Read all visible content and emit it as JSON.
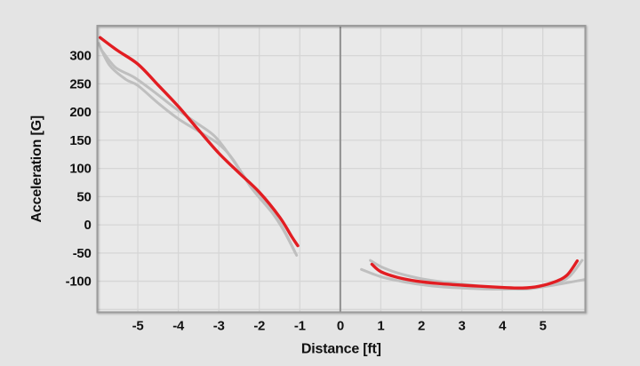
{
  "figure": {
    "bg_color": "#e4e4e4",
    "plot_bg_color": "#e9e9e9",
    "grid_color": "#d6d6d6",
    "border_color": "#9b9b9b",
    "zero_line_color": "#8f8f8f",
    "text_color": "#111111",
    "red_color": "#e21d22",
    "gray_color": "#bfbfbf"
  },
  "chart_data": {
    "type": "line",
    "title": "",
    "xlabel": "Distance [ft]",
    "ylabel": "Acceleration [G]",
    "xlim": [
      -6.0,
      6.05
    ],
    "ylim": [
      -155,
      353
    ],
    "x_ticks": [
      -5,
      -4,
      -3,
      -2,
      -1,
      0,
      1,
      2,
      3,
      4,
      5
    ],
    "y_ticks": [
      300,
      250,
      200,
      150,
      100,
      50,
      0,
      -50,
      -100
    ],
    "x_gridlines": [
      -5,
      -4,
      -3,
      -2,
      -1,
      1,
      2,
      3,
      4,
      5
    ],
    "y_gridlines": [
      -150,
      -100,
      -50,
      0,
      50,
      100,
      150,
      200,
      250,
      300,
      350
    ],
    "zero_x_line": 0,
    "grid": "on",
    "legend": "none",
    "series": [
      {
        "name": "gray-run-1",
        "color": "#bfbfbf",
        "width": 3,
        "segments": [
          [
            [
              -5.88,
              308
            ],
            [
              -5.55,
              279
            ],
            [
              -5.1,
              262
            ],
            [
              -4.6,
              236
            ],
            [
              -4.1,
              208
            ],
            [
              -3.6,
              183
            ],
            [
              -3.1,
              157
            ],
            [
              -2.7,
              120
            ],
            [
              -2.2,
              68
            ],
            [
              -1.7,
              25
            ],
            [
              -1.4,
              -8
            ],
            [
              -1.12,
              -48
            ]
          ],
          [
            [
              0.74,
              -63
            ],
            [
              1,
              -74
            ],
            [
              1.4,
              -85
            ],
            [
              1.9,
              -94
            ],
            [
              2.4,
              -100
            ],
            [
              3,
              -105
            ],
            [
              3.5,
              -109
            ],
            [
              4,
              -112.5
            ],
            [
              4.5,
              -114
            ],
            [
              4.9,
              -111
            ],
            [
              5.3,
              -104
            ],
            [
              5.65,
              -92
            ],
            [
              5.97,
              -63
            ]
          ]
        ]
      },
      {
        "name": "gray-run-2",
        "color": "#bfbfbf",
        "width": 3,
        "segments": [
          [
            [
              -5.97,
              322
            ],
            [
              -5.7,
              283
            ],
            [
              -5.3,
              258
            ],
            [
              -5,
              247
            ],
            [
              -4.5,
              216
            ],
            [
              -4,
              188
            ],
            [
              -3.5,
              166
            ],
            [
              -3,
              143
            ],
            [
              -2.65,
              116
            ],
            [
              -2.2,
              66
            ],
            [
              -1.7,
              23
            ],
            [
              -1.4,
              -10
            ],
            [
              -1.08,
              -54
            ]
          ],
          [
            [
              0.52,
              -79
            ],
            [
              1,
              -92
            ],
            [
              1.5,
              -100
            ],
            [
              2,
              -106
            ],
            [
              2.5,
              -110
            ],
            [
              3,
              -112
            ],
            [
              3.5,
              -113.5
            ],
            [
              4,
              -114
            ],
            [
              4.5,
              -113
            ],
            [
              5,
              -110
            ],
            [
              5.5,
              -104
            ],
            [
              6.03,
              -97
            ]
          ]
        ]
      },
      {
        "name": "red-run",
        "color": "#e21d22",
        "width": 3.4,
        "segments": [
          [
            [
              -5.93,
              332
            ],
            [
              -5.5,
              309
            ],
            [
              -5,
              285
            ],
            [
              -4.5,
              248
            ],
            [
              -4,
              210
            ],
            [
              -3.5,
              168
            ],
            [
              -3,
              127
            ],
            [
              -2.5,
              92
            ],
            [
              -2,
              58
            ],
            [
              -1.5,
              14
            ],
            [
              -1.2,
              -21
            ],
            [
              -1.05,
              -37
            ]
          ],
          [
            [
              0.78,
              -70
            ],
            [
              1,
              -83
            ],
            [
              1.4,
              -93
            ],
            [
              1.9,
              -100
            ],
            [
              2.4,
              -104
            ],
            [
              3,
              -107
            ],
            [
              3.5,
              -109
            ],
            [
              4,
              -111
            ],
            [
              4.5,
              -112
            ],
            [
              4.9,
              -109
            ],
            [
              5.3,
              -101
            ],
            [
              5.6,
              -89
            ],
            [
              5.85,
              -64
            ]
          ]
        ]
      }
    ]
  }
}
